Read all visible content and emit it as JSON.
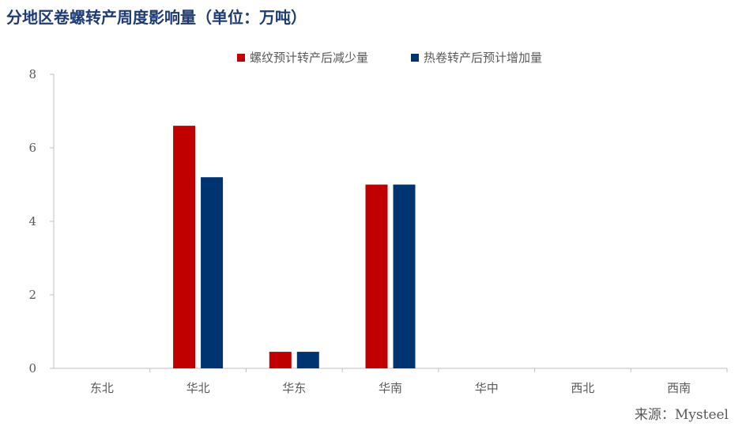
{
  "chart_data": {
    "type": "bar",
    "title": "分地区卷螺转产周度影响量（单位：万吨）",
    "categories": [
      "东北",
      "华北",
      "华东",
      "华南",
      "华中",
      "西北",
      "西南"
    ],
    "series": [
      {
        "name": "螺纹预计转产后减少量",
        "color": "#c00000",
        "values": [
          0,
          6.6,
          0.45,
          5.0,
          0,
          0,
          0
        ]
      },
      {
        "name": "热卷转产后预计增加量",
        "color": "#003470",
        "values": [
          0,
          5.2,
          0.45,
          5.0,
          0,
          0,
          0
        ]
      }
    ],
    "ylim": [
      0,
      8
    ],
    "yticks": [
      0,
      2,
      4,
      6,
      8
    ],
    "xlabel": "",
    "ylabel": "",
    "grid": false,
    "legend": "top-center"
  },
  "source": "来源：Mysteel"
}
